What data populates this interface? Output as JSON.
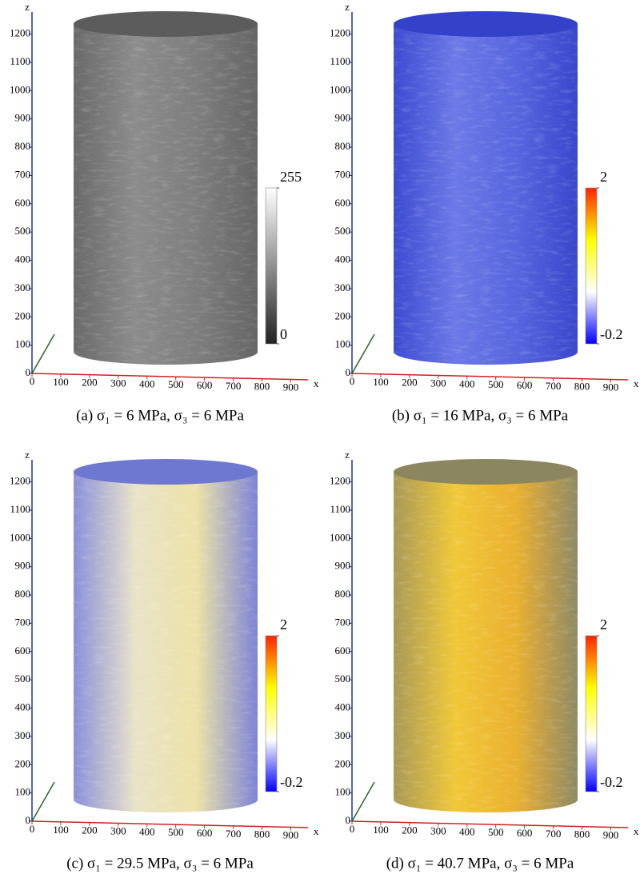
{
  "chart_data": [
    {
      "type": "volume",
      "caption": "(a)  σ₁ = 6 MPa, σ₃ = 6 MPa",
      "xlabel": "x",
      "zlabel": "z",
      "xlim": [
        0,
        960
      ],
      "xticks": [
        0,
        100,
        200,
        300,
        400,
        500,
        600,
        700,
        800,
        900
      ],
      "zlim": [
        0,
        1250
      ],
      "zticks": [
        0,
        100,
        200,
        300,
        400,
        500,
        600,
        700,
        800,
        900,
        1000,
        1100,
        1200
      ],
      "cylinder_colors": [
        "#6a6a6a",
        "#8c8c8c",
        "#7e7e7e",
        "#666666"
      ],
      "top_color": "#5c5c5c",
      "colorbar": {
        "range": [
          0,
          255
        ],
        "ticks": [
          0,
          255
        ],
        "colors": [
          "#222222",
          "#ffffff"
        ]
      }
    },
    {
      "type": "volume",
      "caption": "(b)  σ₁ = 16 MPa, σ₃ = 6 MPa",
      "xlabel": "x",
      "zlabel": "z",
      "xlim": [
        0,
        960
      ],
      "xticks": [
        0,
        100,
        200,
        300,
        400,
        500,
        600,
        700,
        800,
        900
      ],
      "zlim": [
        0,
        1250
      ],
      "zticks": [
        0,
        100,
        200,
        300,
        400,
        500,
        600,
        700,
        800,
        900,
        1000,
        1100,
        1200
      ],
      "cylinder_colors": [
        "#3d4bd2",
        "#6c79e6",
        "#5866df",
        "#3a47cc"
      ],
      "top_color": "#3342c8",
      "colorbar": {
        "range": [
          -0.2,
          2
        ],
        "ticks": [
          -0.2,
          2
        ],
        "colors": [
          "#0000ff",
          "#ffffff",
          "#ffff00",
          "#ff2200"
        ]
      }
    },
    {
      "type": "volume",
      "caption": "(c)  σ₁ = 29.5 MPa, σ₃ = 6 MPa",
      "xlabel": "x",
      "zlabel": "z",
      "xlim": [
        0,
        960
      ],
      "xticks": [
        0,
        100,
        200,
        300,
        400,
        500,
        600,
        700,
        800,
        900
      ],
      "zlim": [
        0,
        1250
      ],
      "zticks": [
        0,
        100,
        200,
        300,
        400,
        500,
        600,
        700,
        800,
        900,
        1000,
        1100,
        1200
      ],
      "cylinder_colors": [
        "#8a90da",
        "#e8e3c8",
        "#ece2a8",
        "#7c84d6"
      ],
      "top_color": "#6f78d0",
      "colorbar": {
        "range": [
          -0.2,
          2
        ],
        "ticks": [
          -0.2,
          2
        ],
        "colors": [
          "#0000ff",
          "#ffffff",
          "#ffff00",
          "#ff2200"
        ]
      }
    },
    {
      "type": "volume",
      "caption": "(d)  σ₁ = 40.7 MPa, σ₃ = 6 MPa",
      "xlabel": "x",
      "zlabel": "z",
      "xlim": [
        0,
        960
      ],
      "xticks": [
        0,
        100,
        200,
        300,
        400,
        500,
        600,
        700,
        800,
        900
      ],
      "zlim": [
        0,
        1250
      ],
      "zticks": [
        0,
        100,
        200,
        300,
        400,
        500,
        600,
        700,
        800,
        900,
        1000,
        1100,
        1200
      ],
      "cylinder_colors": [
        "#a89a58",
        "#f0c838",
        "#eab030",
        "#8e8a66"
      ],
      "top_color": "#8c8660",
      "colorbar": {
        "range": [
          -0.2,
          2
        ],
        "ticks": [
          -0.2,
          2
        ],
        "colors": [
          "#0000ff",
          "#ffffff",
          "#ffff00",
          "#ff2200"
        ]
      }
    }
  ]
}
